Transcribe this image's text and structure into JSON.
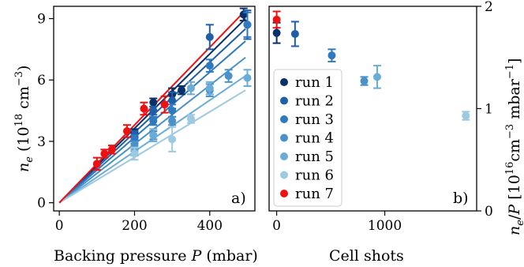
{
  "chart_data": [
    {
      "type": "scatter",
      "panel": "a)",
      "xlabel_text": "Backing pressure ",
      "xlabel_var": "P",
      "xlabel_unit": " (mbar)",
      "ylabel_var": "n",
      "ylabel_sub": "e",
      "ylabel_unit_pre": " (10",
      "ylabel_unit_exp": "18",
      "ylabel_unit_mid": " cm",
      "ylabel_unit_exp2": "−3",
      "ylabel_unit_post": ")",
      "xlim": [
        -15,
        520
      ],
      "ylim": [
        -0.4,
        9.6
      ],
      "xticks": [
        0,
        200,
        400
      ],
      "xtick_labels": [
        "0",
        "200",
        "400"
      ],
      "yticks": [
        0,
        3,
        6,
        9
      ],
      "ytick_labels": [
        "0",
        "3",
        "6",
        "9"
      ],
      "fit_lines": [
        {
          "series": "run 1",
          "x": [
            0,
            495
          ],
          "y": [
            0,
            9.0
          ],
          "color": "#08306b"
        },
        {
          "series": "run 2",
          "x": [
            0,
            495
          ],
          "y": [
            0,
            8.5
          ],
          "color": "#1f5fa8"
        },
        {
          "series": "run 3",
          "x": [
            0,
            495
          ],
          "y": [
            0,
            7.9
          ],
          "color": "#2f7abf"
        },
        {
          "series": "run 4",
          "x": [
            0,
            495
          ],
          "y": [
            0,
            7.1
          ],
          "color": "#4a91c9"
        },
        {
          "series": "run 5",
          "x": [
            0,
            495
          ],
          "y": [
            0,
            6.2
          ],
          "color": "#6aacd8"
        },
        {
          "series": "run 6",
          "x": [
            0,
            495
          ],
          "y": [
            0,
            5.5
          ],
          "color": "#9ecae1"
        },
        {
          "series": "run 7",
          "x": [
            0,
            495
          ],
          "y": [
            0,
            9.4
          ],
          "color": "#ee1111"
        }
      ],
      "series": [
        {
          "name": "run 1",
          "color": "#08306b",
          "points": [
            [
              200,
              3.4,
              0.2
            ],
            [
              250,
              4.9,
              0.2
            ],
            [
              300,
              5.3,
              0.3
            ],
            [
              325,
              5.5,
              0.2
            ],
            [
              490,
              9.2,
              0.3
            ]
          ]
        },
        {
          "name": "run 2",
          "color": "#1f5fa8",
          "points": [
            [
              200,
              3.3,
              0.2
            ],
            [
              250,
              4.5,
              0.2
            ],
            [
              300,
              5.0,
              0.4
            ],
            [
              400,
              8.1,
              0.6
            ],
            [
              500,
              8.7,
              0.7
            ]
          ]
        },
        {
          "name": "run 3",
          "color": "#2f7abf",
          "points": [
            [
              200,
              3.1,
              0.2
            ],
            [
              250,
              4.0,
              0.2
            ],
            [
              300,
              4.5,
              0.3
            ],
            [
              400,
              6.7,
              0.3
            ],
            [
              500,
              8.7,
              0.6
            ]
          ]
        },
        {
          "name": "run 4",
          "color": "#4a91c9",
          "points": [
            [
              200,
              2.8,
              0.2
            ],
            [
              250,
              3.3,
              0.2
            ],
            [
              300,
              4.0,
              0.2
            ],
            [
              400,
              5.5,
              0.3
            ],
            [
              450,
              6.2,
              0.3
            ]
          ]
        },
        {
          "name": "run 5",
          "color": "#6aacd8",
          "points": [
            [
              200,
              2.5,
              0.2
            ],
            [
              250,
              3.3,
              0.3
            ],
            [
              350,
              5.6,
              0.3
            ],
            [
              400,
              5.6,
              0.3
            ],
            [
              500,
              6.1,
              0.4
            ]
          ]
        },
        {
          "name": "run 6",
          "color": "#9ecae1",
          "points": [
            [
              200,
              2.4,
              0.3
            ],
            [
              300,
              3.1,
              0.6
            ],
            [
              350,
              4.1,
              0.2
            ]
          ]
        },
        {
          "name": "run 7",
          "color": "#ee1111",
          "points": [
            [
              100,
              1.9,
              0.3
            ],
            [
              120,
              2.4,
              0.2
            ],
            [
              140,
              2.6,
              0.2
            ],
            [
              180,
              3.5,
              0.3
            ],
            [
              225,
              4.6,
              0.3
            ],
            [
              280,
              4.8,
              0.4
            ]
          ]
        }
      ]
    },
    {
      "type": "scatter",
      "panel": "b)",
      "xlabel": "Cell shots",
      "ylabel_var1": "n",
      "ylabel_sub": "e",
      "ylabel_slash": "/",
      "ylabel_var2": "P",
      "ylabel_unit_pre": " [10",
      "ylabel_unit_exp": "16",
      "ylabel_unit_mid": "cm",
      "ylabel_unit_exp2": "−3",
      "ylabel_unit_mid2": " mbar",
      "ylabel_unit_exp3": "−1",
      "ylabel_unit_post": "]",
      "xlim": [
        -70,
        1850
      ],
      "ylim": [
        0,
        2.0
      ],
      "xticks": [
        0,
        1000
      ],
      "xtick_labels": [
        "0",
        "1000"
      ],
      "yticks": [
        0,
        1,
        2
      ],
      "ytick_labels": [
        "0",
        "1",
        "2"
      ],
      "series": [
        {
          "name": "run 1",
          "color": "#08306b",
          "x": 0,
          "y": 1.74,
          "err": 0.1
        },
        {
          "name": "run 2",
          "color": "#1f5fa8",
          "x": 170,
          "y": 1.73,
          "err": 0.12
        },
        {
          "name": "run 3",
          "color": "#2f7abf",
          "x": 510,
          "y": 1.52,
          "err": 0.06
        },
        {
          "name": "run 4",
          "color": "#4a91c9",
          "x": 810,
          "y": 1.27,
          "err": 0.04
        },
        {
          "name": "run 5",
          "color": "#6aacd8",
          "x": 930,
          "y": 1.31,
          "err": 0.11
        },
        {
          "name": "run 6",
          "color": "#9ecae1",
          "x": 1750,
          "y": 0.93,
          "err": 0.04
        },
        {
          "name": "run 7",
          "color": "#ee1111",
          "x": 0,
          "y": 1.87,
          "err": 0.08
        }
      ],
      "legend_position": "center-left"
    }
  ]
}
